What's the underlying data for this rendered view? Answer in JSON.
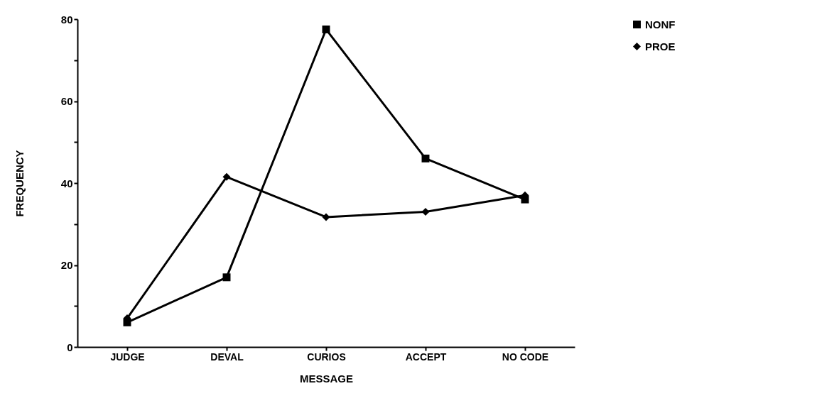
{
  "chart_data": {
    "type": "line",
    "xlabel": "MESSAGE",
    "ylabel": "FREQUENCY",
    "categories": [
      "JUDGE",
      "DEVAL",
      "CURIOS",
      "ACCEPT",
      "NO CODE"
    ],
    "series": [
      {
        "name": "NONF",
        "color": "#000000",
        "marker": "square",
        "values": [
          6,
          17,
          77.5,
          46,
          36
        ]
      },
      {
        "name": "PROE",
        "color": "#000000",
        "marker": "diamond",
        "values": [
          7,
          41.5,
          31.7,
          33,
          37
        ]
      }
    ],
    "ylim": [
      0,
      80
    ],
    "yticks": [
      0,
      {
        "value": 10,
        "label": null
      },
      20,
      {
        "value": 30,
        "label": null
      },
      40,
      {
        "value": 50,
        "label": null
      },
      60,
      {
        "value": 70,
        "label": null
      },
      80
    ],
    "grid": false,
    "legend": "right",
    "line_style": "solid"
  }
}
